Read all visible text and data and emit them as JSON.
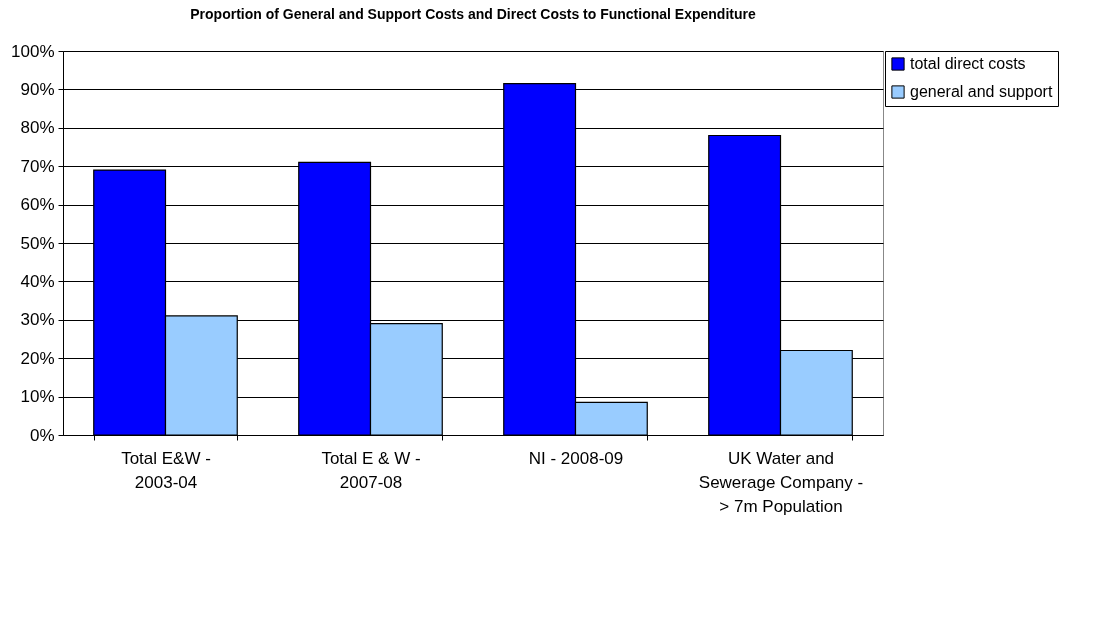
{
  "chart_data": {
    "type": "bar",
    "title": "Proportion of General and Support Costs and Direct Costs to Functional Expenditure",
    "categories": [
      "Total E&W - 2003-04",
      "Total E & W - 2007-08",
      "NI - 2008-09",
      "UK Water and Sewerage Company - > 7m Population"
    ],
    "series": [
      {
        "name": "total direct costs",
        "color": "#0000ff",
        "values": [
          69,
          71,
          91.5,
          78
        ]
      },
      {
        "name": "general and support",
        "color": "#99ccff",
        "values": [
          31,
          29,
          8.5,
          22
        ]
      }
    ],
    "ylim": [
      0,
      100
    ],
    "yticks": [
      {
        "value": 0,
        "label": "0%"
      },
      {
        "value": 10,
        "label": "10%"
      },
      {
        "value": 20,
        "label": "20%"
      },
      {
        "value": 30,
        "label": "30%"
      },
      {
        "value": 40,
        "label": "40%"
      },
      {
        "value": 50,
        "label": "50%"
      },
      {
        "value": 60,
        "label": "60%"
      },
      {
        "value": 70,
        "label": "70%"
      },
      {
        "value": 80,
        "label": "80%"
      },
      {
        "value": 90,
        "label": "90%"
      },
      {
        "value": 100,
        "label": "100%"
      }
    ],
    "grid": "y",
    "legend": "right"
  }
}
